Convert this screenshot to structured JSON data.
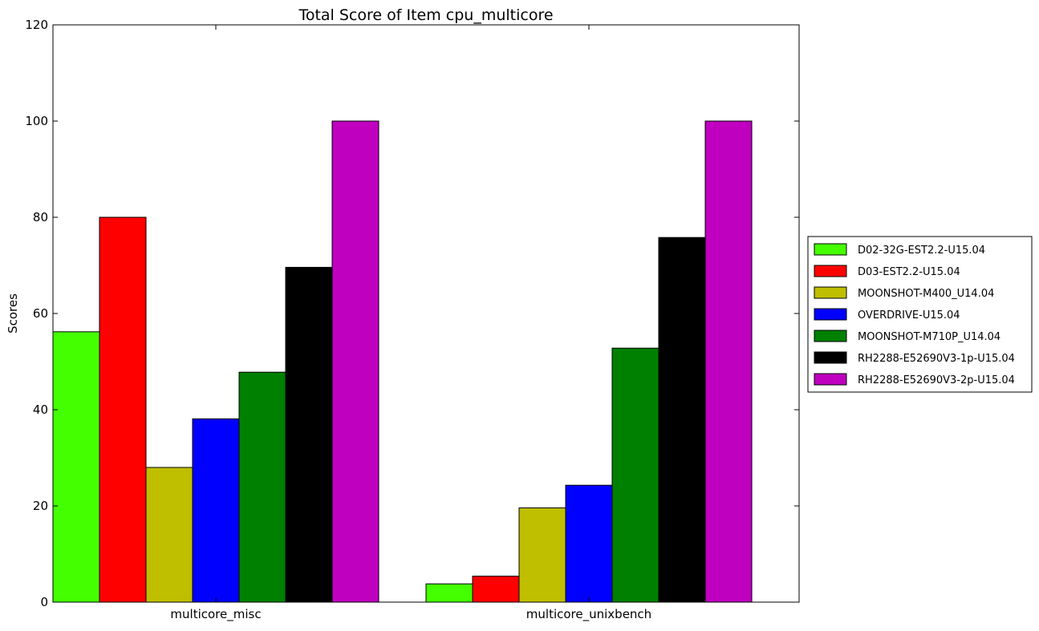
{
  "chart_data": {
    "type": "bar",
    "title": "Total Score of Item cpu_multicore",
    "xlabel": "",
    "ylabel": "Scores",
    "ylim": [
      0,
      120
    ],
    "yticks": [
      0,
      20,
      40,
      60,
      80,
      100,
      120
    ],
    "categories": [
      "multicore_misc",
      "multicore_unixbench"
    ],
    "grid": false,
    "legend_position": "right",
    "series": [
      {
        "name": "D02-32G-EST2.2-U15.04",
        "color": "#44ff00",
        "values": [
          56.2,
          3.8
        ]
      },
      {
        "name": "D03-EST2.2-U15.04",
        "color": "#ff0000",
        "values": [
          80.0,
          5.4
        ]
      },
      {
        "name": "MOONSHOT-M400_U14.04",
        "color": "#bfbf00",
        "values": [
          28.0,
          19.6
        ]
      },
      {
        "name": "OVERDRIVE-U15.04",
        "color": "#0000ff",
        "values": [
          38.1,
          24.3
        ]
      },
      {
        "name": "MOONSHOT-M710P_U14.04",
        "color": "#008000",
        "values": [
          47.8,
          52.8
        ]
      },
      {
        "name": "RH2288-E52690V3-1p-U15.04",
        "color": "#000000",
        "values": [
          69.6,
          75.8
        ]
      },
      {
        "name": "RH2288-E52690V3-2p-U15.04",
        "color": "#bf00bf",
        "values": [
          100.0,
          100.0
        ]
      }
    ]
  }
}
